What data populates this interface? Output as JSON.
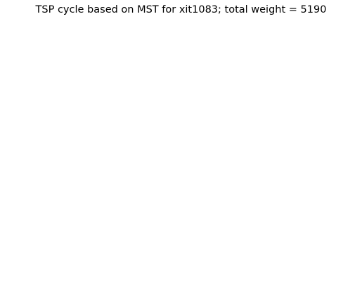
{
  "chart_data": {
    "type": "scatter",
    "title": "TSP cycle based on MST for xit1083; total weight = 5190",
    "xlabel": "",
    "ylabel": "",
    "axes_visible": false,
    "grid": false,
    "legend": "none",
    "x_range": [
      0,
      1
    ],
    "y_range": [
      0,
      1
    ],
    "point_marker": "x",
    "colors": {
      "points": "#0000ff",
      "edges": "#008000"
    },
    "series": [
      {
        "role": "cities",
        "points": []
      },
      {
        "role": "tour",
        "closed": true,
        "points": []
      }
    ]
  }
}
